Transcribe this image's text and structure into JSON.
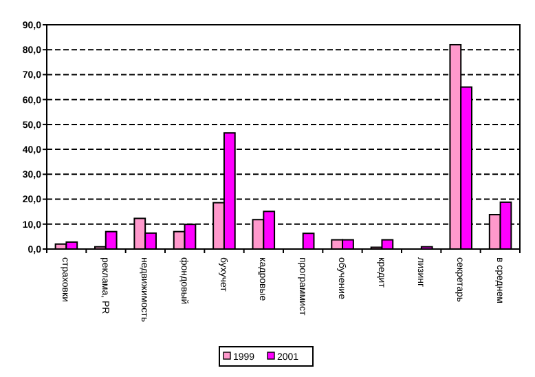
{
  "chart_data": {
    "type": "bar",
    "categories": [
      "страховки",
      "реклама, PR",
      "недвижимость",
      "фондовый",
      "бухучет",
      "кадровые",
      "программист",
      "обучение",
      "кредит",
      "лизинг",
      "секретарь",
      "в среднем"
    ],
    "series": [
      {
        "name": "1999",
        "color": "#ff99cc",
        "values": [
          2.0,
          0.9,
          12.3,
          7.0,
          18.6,
          11.8,
          null,
          3.7,
          0.7,
          null,
          82.0,
          13.8
        ]
      },
      {
        "name": "2001",
        "color": "#ff00ff",
        "values": [
          2.8,
          7.0,
          6.4,
          9.9,
          46.6,
          15.1,
          6.3,
          3.7,
          3.7,
          0.9,
          65.0,
          18.8
        ]
      }
    ],
    "ylim": [
      0,
      90
    ],
    "yticks": [
      {
        "value": 0,
        "label": "0,0"
      },
      {
        "value": 10,
        "label": "10,0"
      },
      {
        "value": 20,
        "label": "20,0"
      },
      {
        "value": 30,
        "label": "30,0"
      },
      {
        "value": 40,
        "label": "40,0"
      },
      {
        "value": 50,
        "label": "50,0"
      },
      {
        "value": 60,
        "label": "60,0"
      },
      {
        "value": 70,
        "label": "70,0"
      },
      {
        "value": 80,
        "label": "80,0"
      },
      {
        "value": 90,
        "label": "90,0"
      }
    ],
    "grid": "y",
    "legend": "bottom"
  }
}
